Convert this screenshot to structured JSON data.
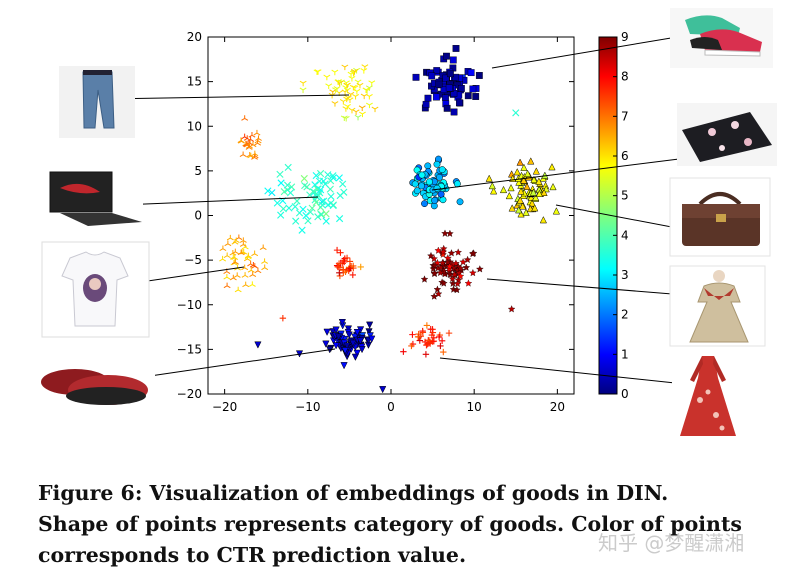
{
  "caption": {
    "line1": "Figure 6: Visualization of embeddings of goods in DIN.",
    "line2": "Shape of points represents category of goods. Color of points",
    "line3": "corresponds to CTR prediction value."
  },
  "watermark": "知乎 @梦醒潇湘",
  "colors": {
    "colorbar_gradient": [
      "#00007f",
      "#0000ff",
      "#007fff",
      "#00ffff",
      "#7fff7f",
      "#ffff00",
      "#ff7f00",
      "#ff0000",
      "#7f0000"
    ]
  },
  "thumbnails": [
    {
      "name": "jeans-photo",
      "icon": "jeans"
    },
    {
      "name": "laptop-photo",
      "icon": "laptop"
    },
    {
      "name": "tshirt-photo",
      "icon": "tshirt"
    },
    {
      "name": "slippers-photo",
      "icon": "slippers"
    },
    {
      "name": "sneakers-photo",
      "icon": "sneakers"
    },
    {
      "name": "floral-wallet-photo",
      "icon": "wallet"
    },
    {
      "name": "handbag-photo",
      "icon": "handbag"
    },
    {
      "name": "coat-photo",
      "icon": "coat"
    },
    {
      "name": "red-dress-photo",
      "icon": "dress"
    }
  ],
  "chart_data": {
    "type": "scatter",
    "xlim": [
      -22,
      22
    ],
    "ylim": [
      -20,
      20
    ],
    "xticks": [
      -20,
      -10,
      0,
      10,
      20
    ],
    "yticks": [
      -20,
      -15,
      -10,
      -5,
      0,
      5,
      10,
      15,
      20
    ],
    "colorbar": {
      "min": 0,
      "max": 9,
      "ticks": [
        0,
        1,
        2,
        3,
        4,
        5,
        6,
        7,
        8,
        9
      ]
    },
    "clusters": [
      {
        "category": "sneakers",
        "marker": "square",
        "center": [
          7,
          15
        ],
        "spread": [
          3.2,
          3.0
        ],
        "ctr": 0.4,
        "count": 80
      },
      {
        "category": "jeans",
        "marker": "tri_down_thin",
        "center": [
          -5,
          14
        ],
        "spread": [
          4.0,
          3.5
        ],
        "ctr": 5.8,
        "count": 60
      },
      {
        "category": "laptop",
        "marker": "x",
        "center": [
          -10,
          2
        ],
        "spread": [
          4.5,
          3.5
        ],
        "ctr": 3.6,
        "count": 70
      },
      {
        "category": "wallet",
        "marker": "circle",
        "center": [
          5,
          3.5
        ],
        "spread": [
          3.0,
          2.5
        ],
        "ctr": 2.6,
        "count": 70
      },
      {
        "category": "handbag",
        "marker": "triangle",
        "center": [
          16.5,
          3
        ],
        "spread": [
          3.0,
          3.5
        ],
        "ctr": 5.8,
        "count": 75
      },
      {
        "category": "tshirt",
        "marker": "tri_up_thin",
        "center": [
          -18,
          -5
        ],
        "spread": [
          3.0,
          3.0
        ],
        "ctr": 6.6,
        "count": 45
      },
      {
        "category": "orange-cluster",
        "marker": "tri_up_thin",
        "center": [
          -17,
          8
        ],
        "spread": [
          1.5,
          2.0
        ],
        "ctr": 7.1,
        "count": 25
      },
      {
        "category": "coat",
        "marker": "star",
        "center": [
          7,
          -6
        ],
        "spread": [
          3.5,
          3.0
        ],
        "ctr": 8.6,
        "count": 70
      },
      {
        "category": "dress",
        "marker": "plus",
        "center": [
          -5.5,
          -5.5
        ],
        "spread": [
          1.8,
          1.5
        ],
        "ctr": 7.6,
        "count": 30
      },
      {
        "category": "dress-b",
        "marker": "plus",
        "center": [
          4.5,
          -14
        ],
        "spread": [
          2.5,
          2.5
        ],
        "ctr": 7.7,
        "count": 35
      },
      {
        "category": "slippers",
        "marker": "tri_down",
        "center": [
          -5,
          -14
        ],
        "spread": [
          3.5,
          2.2
        ],
        "ctr": 0.6,
        "count": 70
      }
    ],
    "outliers": [
      {
        "x": -16,
        "y": -14.5,
        "marker": "tri_down",
        "ctr": 0.6
      },
      {
        "x": -11,
        "y": -15.5,
        "marker": "tri_down",
        "ctr": 0.6
      },
      {
        "x": -1,
        "y": -19.5,
        "marker": "tri_down",
        "ctr": 0.6
      },
      {
        "x": 15,
        "y": 11.5,
        "marker": "x",
        "ctr": 3.6
      },
      {
        "x": -13,
        "y": -11.5,
        "marker": "plus",
        "ctr": 7.6
      },
      {
        "x": 14.5,
        "y": -10.5,
        "marker": "star",
        "ctr": 8.6
      }
    ]
  }
}
